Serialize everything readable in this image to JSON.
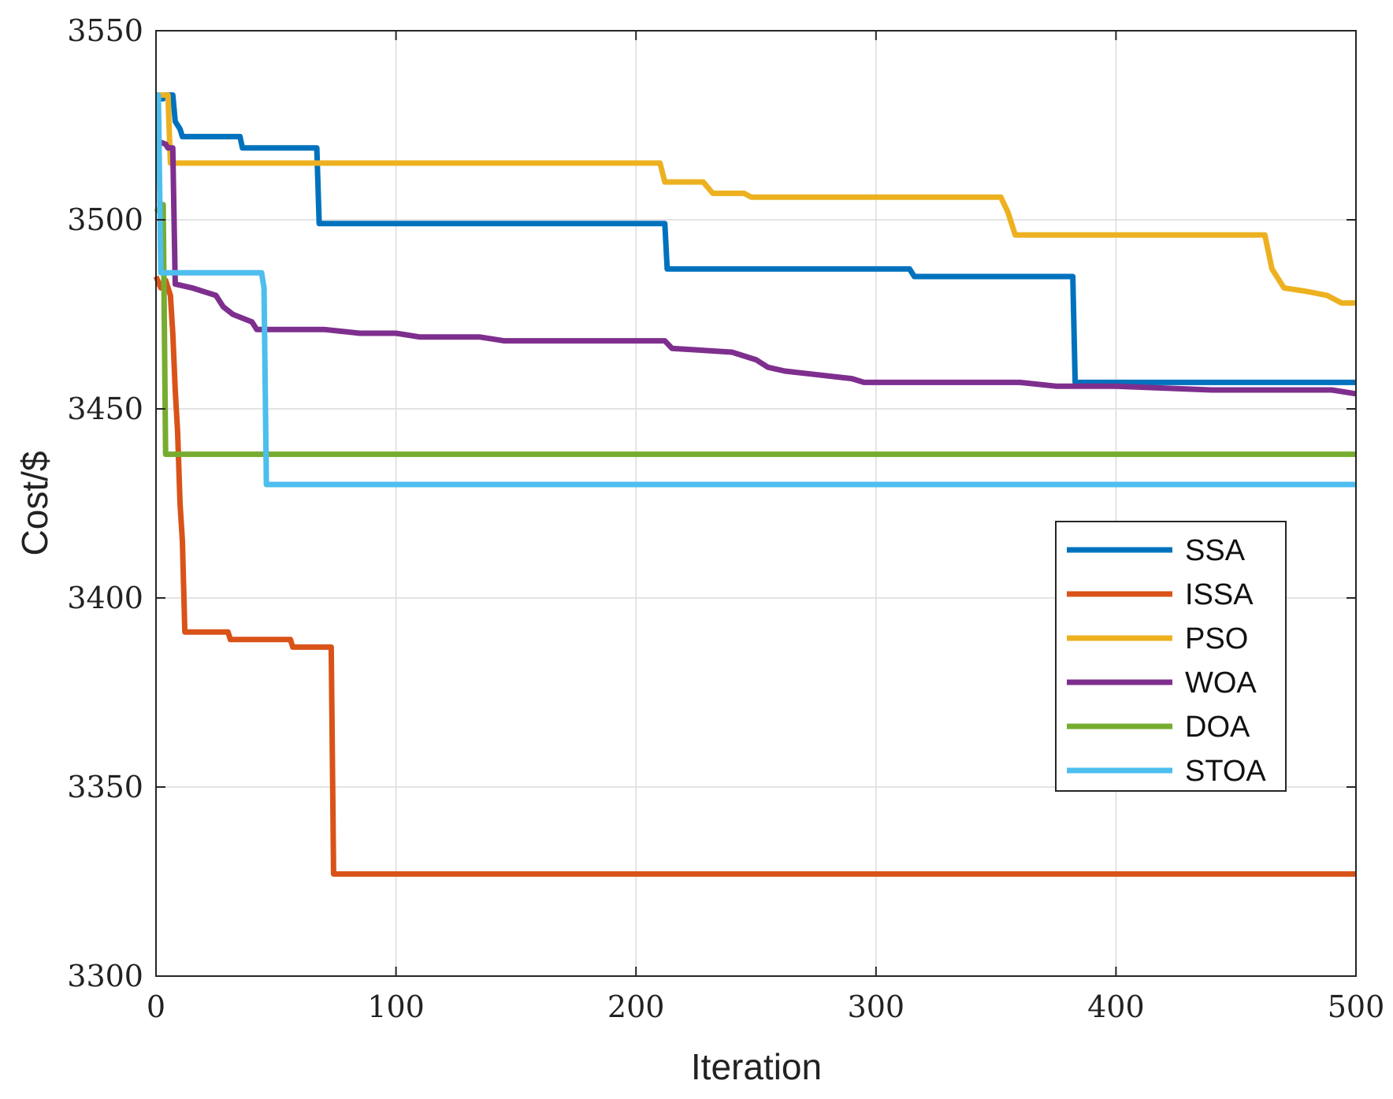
{
  "chart_data": {
    "type": "line",
    "title": "",
    "xlabel": "Iteration",
    "ylabel": "Cost/$",
    "xlim": [
      0,
      500
    ],
    "ylim": [
      3300,
      3550
    ],
    "xticks": [
      0,
      100,
      200,
      300,
      400,
      500
    ],
    "yticks": [
      3300,
      3350,
      3400,
      3450,
      3500,
      3550
    ],
    "xtick_labels": [
      "0",
      "100",
      "200",
      "300",
      "400",
      "500"
    ],
    "ytick_labels": [
      "3300",
      "3350",
      "3400",
      "3450",
      "3500",
      "3550"
    ],
    "grid": true,
    "legend_position": "right",
    "series": [
      {
        "name": "SSA",
        "color": "#0072BD",
        "points": [
          [
            0,
            3532
          ],
          [
            3,
            3532
          ],
          [
            4,
            3533
          ],
          [
            7,
            3533
          ],
          [
            8,
            3526
          ],
          [
            10,
            3524
          ],
          [
            11,
            3522
          ],
          [
            35,
            3522
          ],
          [
            36,
            3519
          ],
          [
            67,
            3519
          ],
          [
            68,
            3499
          ],
          [
            212,
            3499
          ],
          [
            213,
            3487
          ],
          [
            314,
            3487
          ],
          [
            316,
            3485
          ],
          [
            382,
            3485
          ],
          [
            383,
            3457
          ],
          [
            500,
            3457
          ]
        ]
      },
      {
        "name": "ISSA",
        "color": "#D95319",
        "points": [
          [
            0,
            3485
          ],
          [
            2,
            3482
          ],
          [
            4,
            3484
          ],
          [
            6,
            3480
          ],
          [
            7,
            3470
          ],
          [
            8,
            3455
          ],
          [
            9,
            3444
          ],
          [
            10,
            3425
          ],
          [
            11,
            3415
          ],
          [
            12,
            3391
          ],
          [
            30,
            3391
          ],
          [
            31,
            3389
          ],
          [
            56,
            3389
          ],
          [
            57,
            3387
          ],
          [
            73,
            3387
          ],
          [
            74,
            3327
          ],
          [
            500,
            3327
          ]
        ]
      },
      {
        "name": "PSO",
        "color": "#EDB120",
        "points": [
          [
            0,
            3533
          ],
          [
            5,
            3533
          ],
          [
            6,
            3515
          ],
          [
            210,
            3515
          ],
          [
            212,
            3510
          ],
          [
            228,
            3510
          ],
          [
            232,
            3507
          ],
          [
            245,
            3507
          ],
          [
            248,
            3506
          ],
          [
            352,
            3506
          ],
          [
            355,
            3502
          ],
          [
            358,
            3496
          ],
          [
            462,
            3496
          ],
          [
            465,
            3487
          ],
          [
            470,
            3482
          ],
          [
            480,
            3481
          ],
          [
            488,
            3480
          ],
          [
            494,
            3478
          ],
          [
            500,
            3478
          ]
        ]
      },
      {
        "name": "WOA",
        "color": "#7E2F8E",
        "points": [
          [
            0,
            3521
          ],
          [
            4,
            3520
          ],
          [
            5,
            3519
          ],
          [
            7,
            3519
          ],
          [
            8,
            3483
          ],
          [
            15,
            3482
          ],
          [
            20,
            3481
          ],
          [
            25,
            3480
          ],
          [
            28,
            3477
          ],
          [
            32,
            3475
          ],
          [
            40,
            3473
          ],
          [
            42,
            3471
          ],
          [
            70,
            3471
          ],
          [
            85,
            3470
          ],
          [
            100,
            3470
          ],
          [
            110,
            3469
          ],
          [
            135,
            3469
          ],
          [
            145,
            3468
          ],
          [
            212,
            3468
          ],
          [
            215,
            3466
          ],
          [
            240,
            3465
          ],
          [
            250,
            3463
          ],
          [
            255,
            3461
          ],
          [
            262,
            3460
          ],
          [
            290,
            3458
          ],
          [
            295,
            3457
          ],
          [
            310,
            3457
          ],
          [
            360,
            3457
          ],
          [
            375,
            3456
          ],
          [
            400,
            3456
          ],
          [
            440,
            3455
          ],
          [
            490,
            3455
          ],
          [
            500,
            3454
          ]
        ]
      },
      {
        "name": "DOA",
        "color": "#77AC30",
        "points": [
          [
            0,
            3502
          ],
          [
            3,
            3504
          ],
          [
            4,
            3438
          ],
          [
            500,
            3438
          ]
        ]
      },
      {
        "name": "STOA",
        "color": "#4DBEEE",
        "points": [
          [
            0,
            3533
          ],
          [
            1,
            3533
          ],
          [
            2,
            3486
          ],
          [
            44,
            3486
          ],
          [
            45,
            3482
          ],
          [
            46,
            3430
          ],
          [
            500,
            3430
          ]
        ]
      }
    ]
  }
}
